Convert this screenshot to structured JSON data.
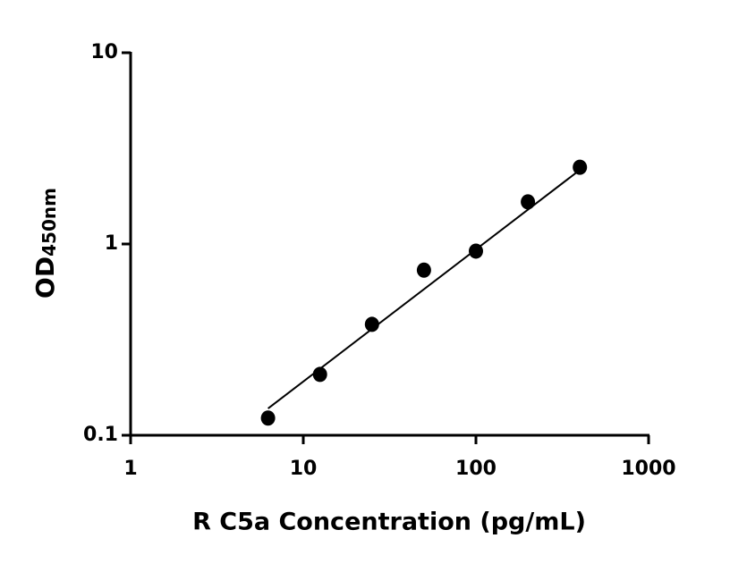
{
  "chart_data": {
    "type": "scatter",
    "xscale": "log",
    "yscale": "log",
    "xlabel": "R C5a Concentration (pg/mL)",
    "ylabel": "OD",
    "ylabel_subscript": "450nm",
    "xlim": [
      1,
      1000
    ],
    "xticks": [
      1,
      10,
      100,
      1000
    ],
    "ylim": [
      0.1,
      10
    ],
    "yticks": [
      0.1,
      1,
      10
    ],
    "series": [
      {
        "style": "markers",
        "color": "#000000",
        "x": [
          6.25,
          12.5,
          25,
          50,
          100,
          200,
          400
        ],
        "values": [
          0.123,
          0.208,
          0.38,
          0.73,
          0.918,
          1.66,
          2.52
        ]
      },
      {
        "style": "line",
        "color": "#000000",
        "x": [
          6.25,
          400
        ],
        "values": [
          0.138,
          2.44
        ]
      }
    ]
  }
}
